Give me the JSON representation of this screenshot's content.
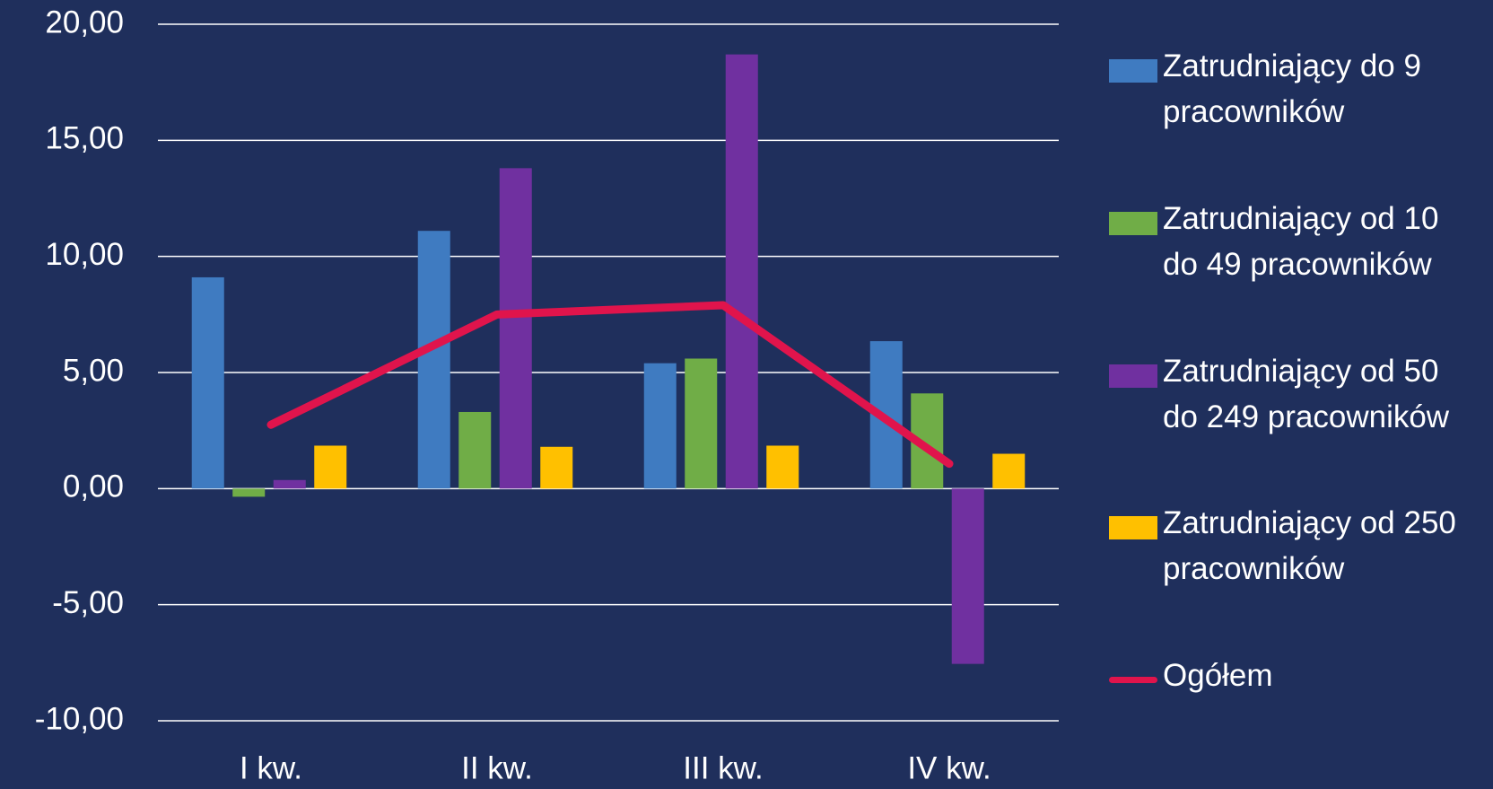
{
  "chart_data": {
    "type": "bar",
    "categories": [
      "I kw.",
      "II kw.",
      "III kw.",
      "IV kw."
    ],
    "series": [
      {
        "name": "Zatrudniający do 9 pracowników",
        "color": "#3f7bc1",
        "values": [
          9.1,
          11.1,
          5.4,
          6.35
        ]
      },
      {
        "name": "Zatrudniający od 10 do 49 pracowników",
        "color": "#70ad47",
        "values": [
          -0.35,
          3.3,
          5.6,
          4.1
        ]
      },
      {
        "name": "Zatrudniający od 50 do 249 pracowników",
        "color": "#7030a0",
        "values": [
          0.37,
          13.8,
          18.7,
          -7.55
        ]
      },
      {
        "name": "Zatrudniający od 250 pracowników",
        "color": "#ffc000",
        "values": [
          1.85,
          1.8,
          1.85,
          1.5
        ]
      },
      {
        "name": "Ogółem",
        "color": "#e0144c",
        "type": "line",
        "values": [
          2.75,
          7.5,
          7.9,
          1.07
        ]
      }
    ],
    "ylim": [
      -10,
      20
    ],
    "yticks": [
      {
        "value": -10,
        "label": "-10,00"
      },
      {
        "value": -5,
        "label": "-5,00"
      },
      {
        "value": 0,
        "label": "0,00"
      },
      {
        "value": 5,
        "label": "5,00"
      },
      {
        "value": 10,
        "label": "10,00"
      },
      {
        "value": 15,
        "label": "15,00"
      },
      {
        "value": 20,
        "label": "20,00"
      }
    ],
    "grid": true,
    "legend": "right"
  }
}
